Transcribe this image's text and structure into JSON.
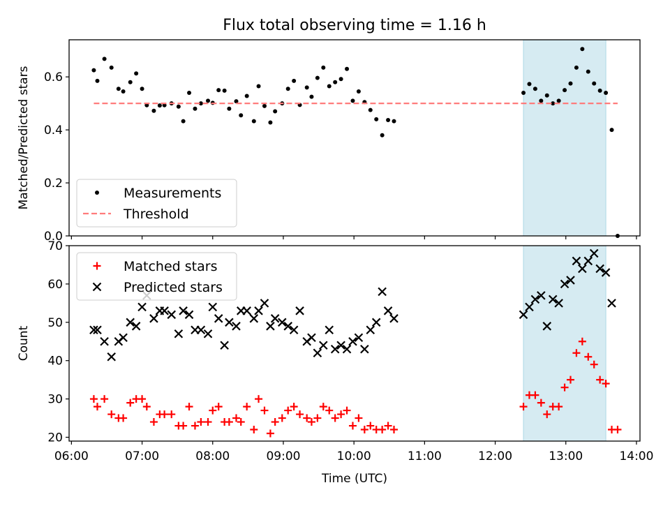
{
  "figure": {
    "title": "Flux total observing time = 1.16 h"
  },
  "chart_data": [
    {
      "type": "scatter",
      "title": "Flux total observing time = 1.16 h",
      "xlabel": "",
      "ylabel": "Matched/Predicted stars",
      "xlim": [
        "05:58",
        "14:03"
      ],
      "ylim": [
        0,
        0.74
      ],
      "yticks": [
        "0.0",
        "0.2",
        "0.4",
        "0.6"
      ],
      "highlight_span": {
        "x": [
          "12:24",
          "13:34"
        ],
        "color": "#add8e6"
      },
      "legend": {
        "location": "lower-left",
        "entries": [
          "Measurements",
          "Threshold"
        ]
      },
      "series": [
        {
          "name": "Measurements",
          "marker": "dot",
          "color": "#000000",
          "points": [
            [
              "06:19",
              0.625
            ],
            [
              "06:22",
              0.585
            ],
            [
              "06:28",
              0.668
            ],
            [
              "06:34",
              0.635
            ],
            [
              "06:40",
              0.555
            ],
            [
              "06:44",
              0.545
            ],
            [
              "06:50",
              0.58
            ],
            [
              "06:55",
              0.613
            ],
            [
              "07:00",
              0.555
            ],
            [
              "07:04",
              0.493
            ],
            [
              "07:10",
              0.472
            ],
            [
              "07:15",
              0.492
            ],
            [
              "07:19",
              0.493
            ],
            [
              "07:25",
              0.5
            ],
            [
              "07:31",
              0.488
            ],
            [
              "07:35",
              0.433
            ],
            [
              "07:40",
              0.54
            ],
            [
              "07:45",
              0.48
            ],
            [
              "07:50",
              0.5
            ],
            [
              "07:56",
              0.51
            ],
            [
              "08:00",
              0.502
            ],
            [
              "08:05",
              0.55
            ],
            [
              "08:10",
              0.548
            ],
            [
              "08:14",
              0.48
            ],
            [
              "08:20",
              0.508
            ],
            [
              "08:24",
              0.455
            ],
            [
              "08:29",
              0.528
            ],
            [
              "08:35",
              0.433
            ],
            [
              "08:39",
              0.565
            ],
            [
              "08:44",
              0.49
            ],
            [
              "08:49",
              0.428
            ],
            [
              "08:53",
              0.47
            ],
            [
              "08:59",
              0.5
            ],
            [
              "09:04",
              0.555
            ],
            [
              "09:09",
              0.585
            ],
            [
              "09:14",
              0.494
            ],
            [
              "09:20",
              0.56
            ],
            [
              "09:24",
              0.525
            ],
            [
              "09:29",
              0.596
            ],
            [
              "09:34",
              0.635
            ],
            [
              "09:39",
              0.565
            ],
            [
              "09:44",
              0.58
            ],
            [
              "09:49",
              0.592
            ],
            [
              "09:54",
              0.63
            ],
            [
              "09:59",
              0.51
            ],
            [
              "10:04",
              0.545
            ],
            [
              "10:09",
              0.505
            ],
            [
              "10:14",
              0.475
            ],
            [
              "10:19",
              0.44
            ],
            [
              "10:24",
              0.38
            ],
            [
              "10:29",
              0.437
            ],
            [
              "10:34",
              0.433
            ],
            [
              "12:24",
              0.54
            ],
            [
              "12:29",
              0.573
            ],
            [
              "12:34",
              0.555
            ],
            [
              "12:39",
              0.51
            ],
            [
              "12:44",
              0.53
            ],
            [
              "12:49",
              0.5
            ],
            [
              "12:54",
              0.51
            ],
            [
              "12:59",
              0.55
            ],
            [
              "13:04",
              0.575
            ],
            [
              "13:09",
              0.635
            ],
            [
              "13:14",
              0.705
            ],
            [
              "13:19",
              0.62
            ],
            [
              "13:24",
              0.575
            ],
            [
              "13:29",
              0.548
            ],
            [
              "13:34",
              0.54
            ],
            [
              "13:39",
              0.4
            ],
            [
              "13:44",
              0.0
            ]
          ]
        },
        {
          "name": "Threshold",
          "style": "dashed",
          "color": "#ff7b7b",
          "points": [
            [
              "06:19",
              0.5
            ],
            [
              "13:44",
              0.5
            ]
          ]
        }
      ]
    },
    {
      "type": "scatter",
      "title": "",
      "xlabel": "Time (UTC)",
      "ylabel": "Count",
      "xlim": [
        "05:58",
        "14:03"
      ],
      "ylim": [
        19,
        70
      ],
      "xticks": [
        "06:00",
        "07:00",
        "08:00",
        "09:00",
        "10:00",
        "11:00",
        "12:00",
        "13:00",
        "14:00"
      ],
      "yticks": [
        "20",
        "30",
        "40",
        "50",
        "60",
        "70"
      ],
      "highlight_span": {
        "x": [
          "12:24",
          "13:34"
        ],
        "color": "#add8e6"
      },
      "legend": {
        "location": "upper-left",
        "entries": [
          "Matched stars",
          "Predicted stars"
        ]
      },
      "series": [
        {
          "name": "Matched stars",
          "marker": "plus",
          "color": "#ff0000",
          "points": [
            [
              "06:19",
              30
            ],
            [
              "06:22",
              28
            ],
            [
              "06:28",
              30
            ],
            [
              "06:34",
              26
            ],
            [
              "06:40",
              25
            ],
            [
              "06:44",
              25
            ],
            [
              "06:50",
              29
            ],
            [
              "06:55",
              30
            ],
            [
              "07:00",
              30
            ],
            [
              "07:04",
              28
            ],
            [
              "07:10",
              24
            ],
            [
              "07:15",
              26
            ],
            [
              "07:19",
              26
            ],
            [
              "07:25",
              26
            ],
            [
              "07:31",
              23
            ],
            [
              "07:35",
              23
            ],
            [
              "07:40",
              28
            ],
            [
              "07:45",
              23
            ],
            [
              "07:50",
              24
            ],
            [
              "07:56",
              24
            ],
            [
              "08:00",
              27
            ],
            [
              "08:05",
              28
            ],
            [
              "08:10",
              24
            ],
            [
              "08:14",
              24
            ],
            [
              "08:20",
              25
            ],
            [
              "08:24",
              24
            ],
            [
              "08:29",
              28
            ],
            [
              "08:35",
              22
            ],
            [
              "08:39",
              30
            ],
            [
              "08:44",
              27
            ],
            [
              "08:49",
              21
            ],
            [
              "08:53",
              24
            ],
            [
              "08:59",
              25
            ],
            [
              "09:04",
              27
            ],
            [
              "09:09",
              28
            ],
            [
              "09:14",
              26
            ],
            [
              "09:20",
              25
            ],
            [
              "09:24",
              24
            ],
            [
              "09:29",
              25
            ],
            [
              "09:34",
              28
            ],
            [
              "09:39",
              27
            ],
            [
              "09:44",
              25
            ],
            [
              "09:49",
              26
            ],
            [
              "09:54",
              27
            ],
            [
              "09:59",
              23
            ],
            [
              "10:04",
              25
            ],
            [
              "10:09",
              22
            ],
            [
              "10:14",
              23
            ],
            [
              "10:19",
              22
            ],
            [
              "10:24",
              22
            ],
            [
              "10:29",
              23
            ],
            [
              "10:34",
              22
            ],
            [
              "12:24",
              28
            ],
            [
              "12:29",
              31
            ],
            [
              "12:34",
              31
            ],
            [
              "12:39",
              29
            ],
            [
              "12:44",
              26
            ],
            [
              "12:49",
              28
            ],
            [
              "12:54",
              28
            ],
            [
              "12:59",
              33
            ],
            [
              "13:04",
              35
            ],
            [
              "13:09",
              42
            ],
            [
              "13:14",
              45
            ],
            [
              "13:19",
              41
            ],
            [
              "13:24",
              39
            ],
            [
              "13:29",
              35
            ],
            [
              "13:34",
              34
            ],
            [
              "13:39",
              22
            ],
            [
              "13:44",
              22
            ]
          ]
        },
        {
          "name": "Predicted stars",
          "marker": "x",
          "color": "#000000",
          "points": [
            [
              "06:19",
              48
            ],
            [
              "06:22",
              48
            ],
            [
              "06:28",
              45
            ],
            [
              "06:34",
              41
            ],
            [
              "06:40",
              45
            ],
            [
              "06:44",
              46
            ],
            [
              "06:50",
              50
            ],
            [
              "06:55",
              49
            ],
            [
              "07:00",
              54
            ],
            [
              "07:04",
              57
            ],
            [
              "07:10",
              51
            ],
            [
              "07:15",
              53
            ],
            [
              "07:19",
              53
            ],
            [
              "07:25",
              52
            ],
            [
              "07:31",
              47
            ],
            [
              "07:35",
              53
            ],
            [
              "07:40",
              52
            ],
            [
              "07:45",
              48
            ],
            [
              "07:50",
              48
            ],
            [
              "07:56",
              47
            ],
            [
              "08:00",
              54
            ],
            [
              "08:05",
              51
            ],
            [
              "08:10",
              44
            ],
            [
              "08:14",
              50
            ],
            [
              "08:20",
              49
            ],
            [
              "08:24",
              53
            ],
            [
              "08:29",
              53
            ],
            [
              "08:35",
              51
            ],
            [
              "08:39",
              53
            ],
            [
              "08:44",
              55
            ],
            [
              "08:49",
              49
            ],
            [
              "08:53",
              51
            ],
            [
              "08:59",
              50
            ],
            [
              "09:04",
              49
            ],
            [
              "09:09",
              48
            ],
            [
              "09:14",
              53
            ],
            [
              "09:20",
              45
            ],
            [
              "09:24",
              46
            ],
            [
              "09:29",
              42
            ],
            [
              "09:34",
              44
            ],
            [
              "09:39",
              48
            ],
            [
              "09:44",
              43
            ],
            [
              "09:49",
              44
            ],
            [
              "09:54",
              43
            ],
            [
              "09:59",
              45
            ],
            [
              "10:04",
              46
            ],
            [
              "10:09",
              43
            ],
            [
              "10:14",
              48
            ],
            [
              "10:19",
              50
            ],
            [
              "10:24",
              58
            ],
            [
              "10:29",
              53
            ],
            [
              "10:34",
              51
            ],
            [
              "12:24",
              52
            ],
            [
              "12:29",
              54
            ],
            [
              "12:34",
              56
            ],
            [
              "12:39",
              57
            ],
            [
              "12:44",
              49
            ],
            [
              "12:49",
              56
            ],
            [
              "12:54",
              55
            ],
            [
              "12:59",
              60
            ],
            [
              "13:04",
              61
            ],
            [
              "13:09",
              66
            ],
            [
              "13:14",
              64
            ],
            [
              "13:19",
              66
            ],
            [
              "13:24",
              68
            ],
            [
              "13:29",
              64
            ],
            [
              "13:34",
              63
            ],
            [
              "13:39",
              55
            ]
          ]
        }
      ]
    }
  ]
}
